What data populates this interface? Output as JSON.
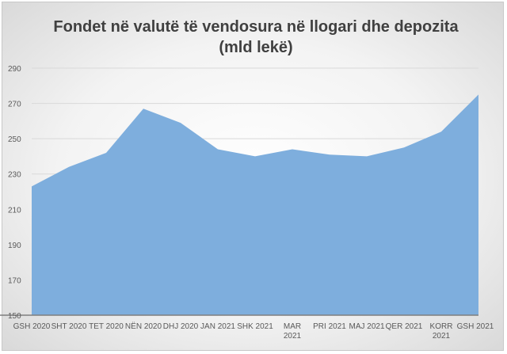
{
  "chart_data": {
    "type": "area",
    "title_lines": [
      "Fondet në valutë të vendosura në llogari dhe depozita",
      "(mld lekë)"
    ],
    "categories": [
      [
        "GSH 2020"
      ],
      [
        "SHT 2020"
      ],
      [
        "TET 2020"
      ],
      [
        "NËN 2020"
      ],
      [
        "DHJ 2020"
      ],
      [
        "JAN 2021"
      ],
      [
        "SHK 2021"
      ],
      [
        "MAR",
        "2021"
      ],
      [
        "PRI 2021"
      ],
      [
        "MAJ 2021"
      ],
      [
        "QER 2021"
      ],
      [
        "KORR",
        "2021"
      ],
      [
        "GSH 2021"
      ]
    ],
    "values": [
      223,
      234,
      242,
      267,
      259,
      244,
      240,
      244,
      241,
      240,
      245,
      254,
      275
    ],
    "yticks": [
      150,
      170,
      190,
      210,
      230,
      250,
      270,
      290
    ],
    "ylim": [
      150,
      290
    ],
    "grid": true,
    "legend": "none",
    "colors": {
      "fill": "#7eaedd",
      "axis": "#7f7f7f",
      "grid": "#d9d9d9"
    }
  }
}
